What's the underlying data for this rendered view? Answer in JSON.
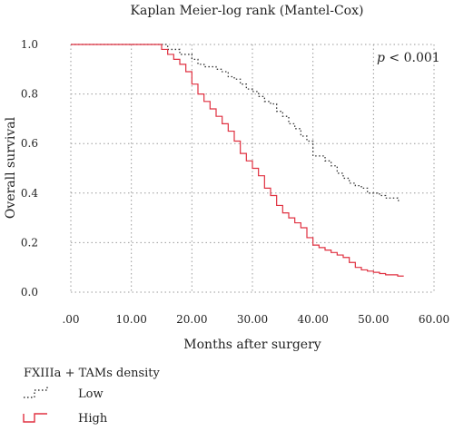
{
  "chart_data": {
    "type": "line",
    "title": "Kaplan Meier-log rank (Mantel-Cox)",
    "xlabel": "Months after surgery",
    "ylabel": "Overall survival",
    "xlim": [
      0,
      60
    ],
    "ylim": [
      0,
      1.0
    ],
    "x_ticks": [
      ".00",
      "10.00",
      "20.00",
      "30.00",
      "40.00",
      "50.00",
      "60.00"
    ],
    "y_ticks": [
      "0.0",
      "0.2",
      "0.4",
      "0.6",
      "0.8",
      "1.0"
    ],
    "grid": true,
    "annotation": "p < 0.001",
    "legend_title": "FXIIIa + TAMs density",
    "legend_position": "bottom-left",
    "series": [
      {
        "name": "Low",
        "color": "#333333",
        "style": "dotted",
        "steps": [
          [
            0,
            1.0
          ],
          [
            16,
            0.98
          ],
          [
            18,
            0.96
          ],
          [
            20,
            0.94
          ],
          [
            21,
            0.92
          ],
          [
            22,
            0.91
          ],
          [
            24,
            0.9
          ],
          [
            25,
            0.89
          ],
          [
            26,
            0.87
          ],
          [
            27,
            0.86
          ],
          [
            28,
            0.84
          ],
          [
            29,
            0.82
          ],
          [
            30,
            0.81
          ],
          [
            31,
            0.79
          ],
          [
            32,
            0.77
          ],
          [
            33,
            0.76
          ],
          [
            34,
            0.73
          ],
          [
            35,
            0.71
          ],
          [
            36,
            0.68
          ],
          [
            37,
            0.66
          ],
          [
            38,
            0.63
          ],
          [
            39,
            0.61
          ],
          [
            40,
            0.55
          ],
          [
            42,
            0.53
          ],
          [
            43,
            0.51
          ],
          [
            44,
            0.48
          ],
          [
            45,
            0.46
          ],
          [
            46,
            0.44
          ],
          [
            47,
            0.43
          ],
          [
            48,
            0.42
          ],
          [
            49,
            0.4
          ],
          [
            51,
            0.39
          ],
          [
            52,
            0.38
          ],
          [
            54,
            0.37
          ]
        ],
        "end_x": 54.5
      },
      {
        "name": "High",
        "color": "#e03040",
        "style": "solid",
        "steps": [
          [
            0,
            1.0
          ],
          [
            15,
            0.98
          ],
          [
            16,
            0.96
          ],
          [
            17,
            0.94
          ],
          [
            18,
            0.92
          ],
          [
            19,
            0.89
          ],
          [
            20,
            0.84
          ],
          [
            21,
            0.8
          ],
          [
            22,
            0.77
          ],
          [
            23,
            0.74
          ],
          [
            24,
            0.71
          ],
          [
            25,
            0.68
          ],
          [
            26,
            0.65
          ],
          [
            27,
            0.61
          ],
          [
            28,
            0.56
          ],
          [
            29,
            0.53
          ],
          [
            30,
            0.5
          ],
          [
            31,
            0.47
          ],
          [
            32,
            0.42
          ],
          [
            33,
            0.39
          ],
          [
            34,
            0.35
          ],
          [
            35,
            0.32
          ],
          [
            36,
            0.3
          ],
          [
            37,
            0.28
          ],
          [
            38,
            0.26
          ],
          [
            39,
            0.22
          ],
          [
            40,
            0.19
          ],
          [
            41,
            0.18
          ],
          [
            42,
            0.17
          ],
          [
            43,
            0.16
          ],
          [
            44,
            0.15
          ],
          [
            45,
            0.14
          ],
          [
            46,
            0.12
          ],
          [
            47,
            0.1
          ],
          [
            48,
            0.09
          ],
          [
            49,
            0.085
          ],
          [
            50,
            0.08
          ],
          [
            51,
            0.075
          ],
          [
            52,
            0.07
          ],
          [
            54,
            0.065
          ]
        ],
        "end_x": 55
      }
    ]
  }
}
